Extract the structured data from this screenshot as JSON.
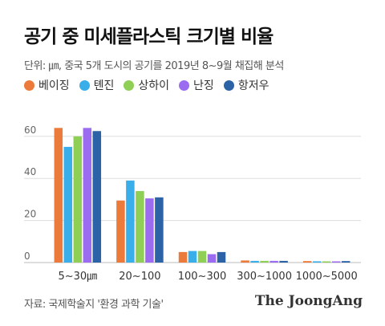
{
  "header": {
    "title": "공기 중 미세플라스틱 크기별 비율",
    "subtitle": "단위: ㎛, 중국 5개 도시의 공기를 2019년 8~9월 채집해 분석"
  },
  "legend": {
    "items": [
      {
        "label": "베이징",
        "color": "#ec7a3a"
      },
      {
        "label": "톈진",
        "color": "#3aaee8"
      },
      {
        "label": "상하이",
        "color": "#8fcf55"
      },
      {
        "label": "난징",
        "color": "#9b6bf0"
      },
      {
        "label": "항저우",
        "color": "#2c63a6"
      }
    ]
  },
  "footer": {
    "source": "자료: 국제학술지 '환경 과학 기술'",
    "brand": "The JoongAng"
  },
  "chart_data": {
    "type": "bar",
    "categories": [
      "5~30㎛",
      "20~100",
      "100~300",
      "300~1000",
      "1000~5000"
    ],
    "series": [
      {
        "name": "베이징",
        "color": "#ec7a3a",
        "values": [
          64,
          29.5,
          5,
          1,
          0.7
        ]
      },
      {
        "name": "톈진",
        "color": "#3aaee8",
        "values": [
          55,
          39,
          5.5,
          0.8,
          0.6
        ]
      },
      {
        "name": "상하이",
        "color": "#8fcf55",
        "values": [
          60,
          34,
          5.5,
          0.8,
          0.3
        ]
      },
      {
        "name": "난징",
        "color": "#9b6bf0",
        "values": [
          64,
          30.5,
          4,
          0.8,
          0.3
        ]
      },
      {
        "name": "항저우",
        "color": "#2c63a6",
        "values": [
          62.5,
          31,
          5,
          0.8,
          0.7
        ]
      }
    ],
    "yticks": [
      0,
      20,
      40,
      60
    ],
    "ylim": [
      0,
      70
    ],
    "grid": true
  }
}
